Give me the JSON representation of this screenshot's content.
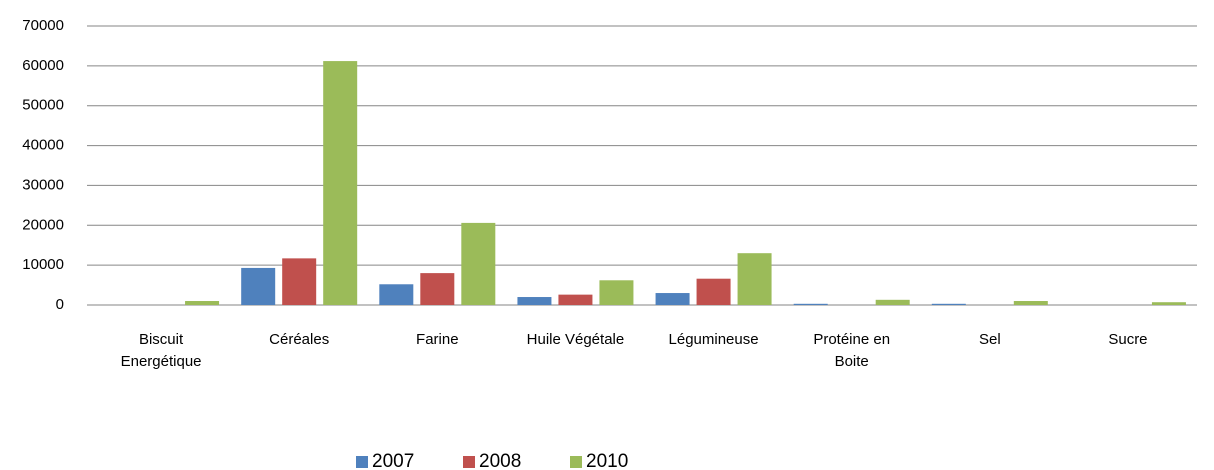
{
  "chart_data": {
    "type": "bar",
    "categories": [
      "Biscuit Energétique",
      "Céréales",
      "Farine",
      "Huile Végétale",
      "Légumineuse",
      "Protéine en Boite",
      "Sel",
      "Sucre"
    ],
    "series": [
      {
        "name": "2007",
        "color": "#4f81bd",
        "values": [
          0,
          9300,
          5200,
          2000,
          3000,
          300,
          300,
          0
        ]
      },
      {
        "name": "2008",
        "color": "#c0504d",
        "values": [
          0,
          11700,
          8000,
          2600,
          6600,
          0,
          0,
          0
        ]
      },
      {
        "name": "2010",
        "color": "#9bbb59",
        "values": [
          1000,
          61200,
          20600,
          6200,
          13000,
          1300,
          1000,
          700
        ]
      }
    ],
    "ylim": [
      0,
      70000
    ],
    "yticks": [
      0,
      10000,
      20000,
      30000,
      40000,
      50000,
      60000,
      70000
    ],
    "grid": true,
    "legend": "bottom"
  }
}
